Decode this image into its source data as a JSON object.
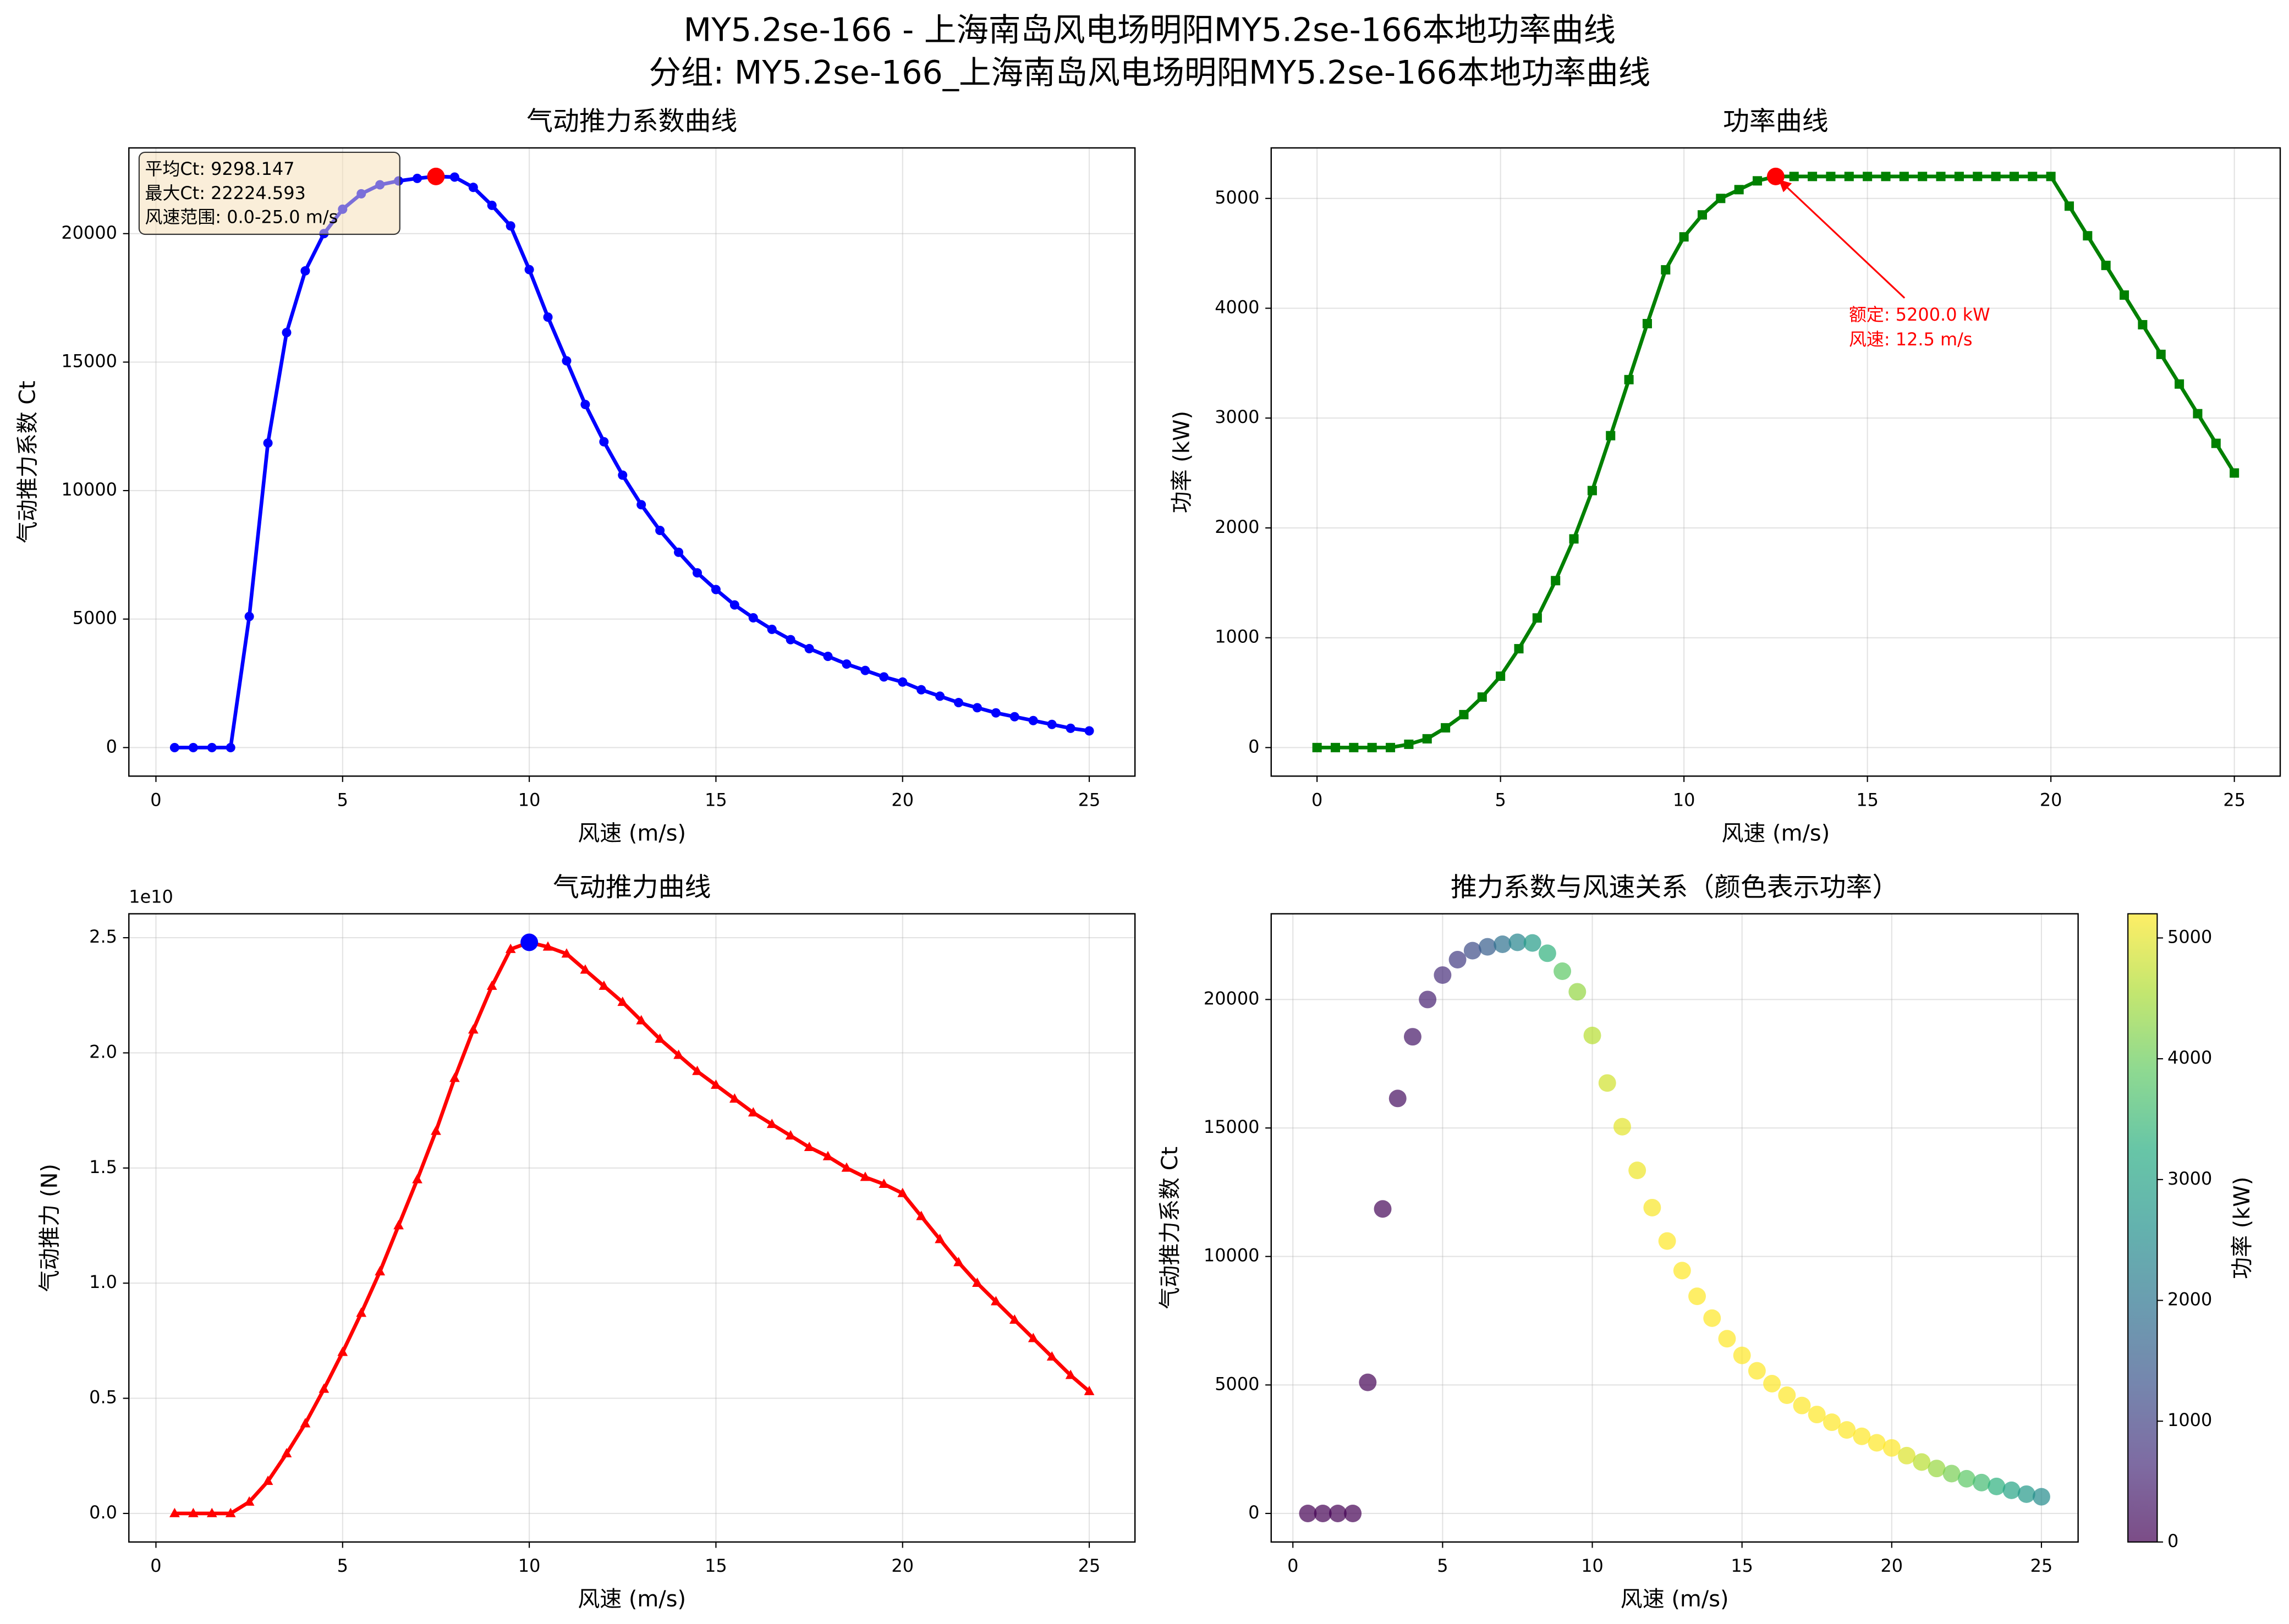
{
  "title": [
    "MY5.2se-166 - 上海南岛风电场明阳MY5.2se-166本地功率曲线",
    "分组: MY5.2se-166_上海南岛风电场明阳MY5.2se-166本地功率曲线"
  ],
  "chart_data": [
    {
      "type": "line",
      "title": "气动推力系数曲线",
      "xlabel": "风速 (m/s)",
      "ylabel": "气动推力系数 Ct",
      "x": [
        0.5,
        1,
        1.5,
        2,
        2.5,
        3,
        3.5,
        4,
        4.5,
        5,
        5.5,
        6,
        6.5,
        7,
        7.5,
        8,
        8.5,
        9,
        9.5,
        10,
        10.5,
        11,
        11.5,
        12,
        12.5,
        13,
        13.5,
        14,
        14.5,
        15,
        15.5,
        16,
        16.5,
        17,
        17.5,
        18,
        18.5,
        19,
        19.5,
        20,
        20.5,
        21,
        21.5,
        22,
        22.5,
        23,
        23.5,
        24,
        24.5,
        25
      ],
      "values": [
        0,
        0,
        0,
        0,
        5100,
        11850,
        16150,
        18550,
        20000,
        20950,
        21550,
        21900,
        22050,
        22150,
        22224.593,
        22200,
        21800,
        21100,
        20300,
        18600,
        16750,
        15050,
        13350,
        11900,
        10600,
        9450,
        8450,
        7600,
        6800,
        6150,
        5550,
        5050,
        4600,
        4200,
        3850,
        3550,
        3250,
        3000,
        2750,
        2550,
        2250,
        2000,
        1750,
        1550,
        1350,
        1200,
        1050,
        900,
        750,
        650
      ],
      "color": "#0000ff",
      "marker": "circle",
      "highlight_color": "#ff0000",
      "xlim": [
        -0.725,
        26.225
      ],
      "ylim": [
        -1111.23,
        23335.82
      ],
      "xticks": [
        0,
        5,
        10,
        15,
        20,
        25
      ],
      "yticks": [
        0,
        5000,
        10000,
        15000,
        20000
      ],
      "grid": true,
      "stats_box": [
        "平均Ct: 9298.147",
        "最大Ct: 22224.593",
        "风速范围: 0.0-25.0 m/s"
      ]
    },
    {
      "type": "line",
      "title": "功率曲线",
      "xlabel": "风速 (m/s)",
      "ylabel": "功率 (kW)",
      "x": [
        0,
        0.5,
        1,
        1.5,
        2,
        2.5,
        3,
        3.5,
        4,
        4.5,
        5,
        5.5,
        6,
        6.5,
        7,
        7.5,
        8,
        8.5,
        9,
        9.5,
        10,
        10.5,
        11,
        11.5,
        12,
        12.5,
        13,
        13.5,
        14,
        14.5,
        15,
        15.5,
        16,
        16.5,
        17,
        17.5,
        18,
        18.5,
        19,
        19.5,
        20,
        20.5,
        21,
        21.5,
        22,
        22.5,
        23,
        23.5,
        24,
        24.5,
        25
      ],
      "values": [
        0,
        0,
        0,
        0,
        0,
        30,
        80,
        180,
        300,
        460,
        650,
        900,
        1180,
        1520,
        1900,
        2340,
        2840,
        3350,
        3860,
        4350,
        4650,
        4850,
        5000,
        5080,
        5160,
        5200,
        5200,
        5200,
        5200,
        5200,
        5200,
        5200,
        5200,
        5200,
        5200,
        5200,
        5200,
        5200,
        5200,
        5200,
        5200,
        4930,
        4660,
        4390,
        4120,
        3850,
        3580,
        3310,
        3040,
        2770,
        2500
      ],
      "color": "#008000",
      "marker": "square",
      "highlight_color": "#ff0000",
      "xlim": [
        -1.25,
        26.25
      ],
      "ylim": [
        -260,
        5460
      ],
      "xticks": [
        0,
        5,
        10,
        15,
        20,
        25
      ],
      "yticks": [
        0,
        1000,
        2000,
        3000,
        4000,
        5000
      ],
      "grid": true,
      "annotation": {
        "lines": [
          "额定: 5200.0 kW",
          "风速: 12.5 m/s"
        ],
        "color": "#ff0000"
      }
    },
    {
      "type": "line",
      "title": "气动推力曲线",
      "xlabel": "风速 (m/s)",
      "ylabel": "气动推力 (N)",
      "offset_label": "1e10",
      "x": [
        0.5,
        1,
        1.5,
        2,
        2.5,
        3,
        3.5,
        4,
        4.5,
        5,
        5.5,
        6,
        6.5,
        7,
        7.5,
        8,
        8.5,
        9,
        9.5,
        10,
        10.5,
        11,
        11.5,
        12,
        12.5,
        13,
        13.5,
        14,
        14.5,
        15,
        15.5,
        16,
        16.5,
        17,
        17.5,
        18,
        18.5,
        19,
        19.5,
        20,
        20.5,
        21,
        21.5,
        22,
        22.5,
        23,
        23.5,
        24,
        24.5,
        25
      ],
      "values": [
        0,
        0,
        0,
        0,
        500000000.0,
        1400000000.0,
        2600000000.0,
        3900000000.0,
        5400000000.0,
        7000000000.0,
        8700000000.0,
        10500000000.0,
        12500000000.0,
        14500000000.0,
        16600000000.0,
        18900000000.0,
        21000000000.0,
        22900000000.0,
        24500000000.0,
        24800000000.0,
        24600000000.0,
        24300000000.0,
        23600000000.0,
        22900000000.0,
        22200000000.0,
        21400000000.0,
        20600000000.0,
        19900000000.0,
        19200000000.0,
        18600000000.0,
        18000000000.0,
        17400000000.0,
        16900000000.0,
        16400000000.0,
        15900000000.0,
        15500000000.0,
        15000000000.0,
        14600000000.0,
        14300000000.0,
        13900000000.0,
        12900000000.0,
        11900000000.0,
        10900000000.0,
        10000000000.0,
        9200000000.0,
        8400000000.0,
        7600000000.0,
        6800000000.0,
        6000000000.0,
        5300000000.0
      ],
      "color": "#ff0000",
      "marker": "triangle",
      "highlight_color": "#0000ff",
      "xlim": [
        -0.725,
        26.225
      ],
      "ylim": [
        -1240000000.0,
        26040000000.0
      ],
      "xticks": [
        0,
        5,
        10,
        15,
        20,
        25
      ],
      "yticks": [
        {
          "value": 0,
          "label": "0.0"
        },
        {
          "value": 5000000000.0,
          "label": "0.5"
        },
        {
          "value": 10000000000.0,
          "label": "1.0"
        },
        {
          "value": 15000000000.0,
          "label": "1.5"
        },
        {
          "value": 20000000000.0,
          "label": "2.0"
        },
        {
          "value": 25000000000.0,
          "label": "2.5"
        }
      ],
      "grid": true
    },
    {
      "type": "scatter",
      "title": "推力系数与风速关系（颜色表示功率）",
      "xlabel": "风速 (m/s)",
      "ylabel": "气动推力系数 Ct",
      "x": [
        0.5,
        1,
        1.5,
        2,
        2.5,
        3,
        3.5,
        4,
        4.5,
        5,
        5.5,
        6,
        6.5,
        7,
        7.5,
        8,
        8.5,
        9,
        9.5,
        10,
        10.5,
        11,
        11.5,
        12,
        12.5,
        13,
        13.5,
        14,
        14.5,
        15,
        15.5,
        16,
        16.5,
        17,
        17.5,
        18,
        18.5,
        19,
        19.5,
        20,
        20.5,
        21,
        21.5,
        22,
        22.5,
        23,
        23.5,
        24,
        24.5,
        25
      ],
      "values": [
        0,
        0,
        0,
        0,
        5100,
        11850,
        16150,
        18550,
        20000,
        20950,
        21550,
        21900,
        22050,
        22150,
        22224.593,
        22200,
        21800,
        21100,
        20300,
        18600,
        16750,
        15050,
        13350,
        11900,
        10600,
        9450,
        8450,
        7600,
        6800,
        6150,
        5550,
        5050,
        4600,
        4200,
        3850,
        3550,
        3250,
        3000,
        2750,
        2550,
        2250,
        2000,
        1750,
        1550,
        1350,
        1200,
        1050,
        900,
        750,
        650
      ],
      "color_values": [
        0,
        0,
        0,
        0,
        30,
        80,
        180,
        300,
        460,
        650,
        900,
        1180,
        1520,
        1900,
        2340,
        2840,
        3350,
        3860,
        4350,
        4650,
        4850,
        5000,
        5080,
        5160,
        5200,
        5200,
        5200,
        5200,
        5200,
        5200,
        5200,
        5200,
        5200,
        5200,
        5200,
        5200,
        5200,
        5200,
        5200,
        5200,
        4930,
        4660,
        4390,
        4120,
        3850,
        3580,
        3310,
        3040,
        2770,
        2500
      ],
      "colormap": "viridis",
      "alpha": 0.7,
      "clim": [
        0,
        5200
      ],
      "colorbar_ticks": [
        0,
        1000,
        2000,
        3000,
        4000,
        5000
      ],
      "colorbar_label": "功率 (kW)",
      "xlim": [
        -0.725,
        26.225
      ],
      "ylim": [
        -1111.23,
        23335.82
      ],
      "xticks": [
        0,
        5,
        10,
        15,
        20,
        25
      ],
      "yticks": [
        0,
        5000,
        10000,
        15000,
        20000
      ],
      "grid": true
    }
  ]
}
